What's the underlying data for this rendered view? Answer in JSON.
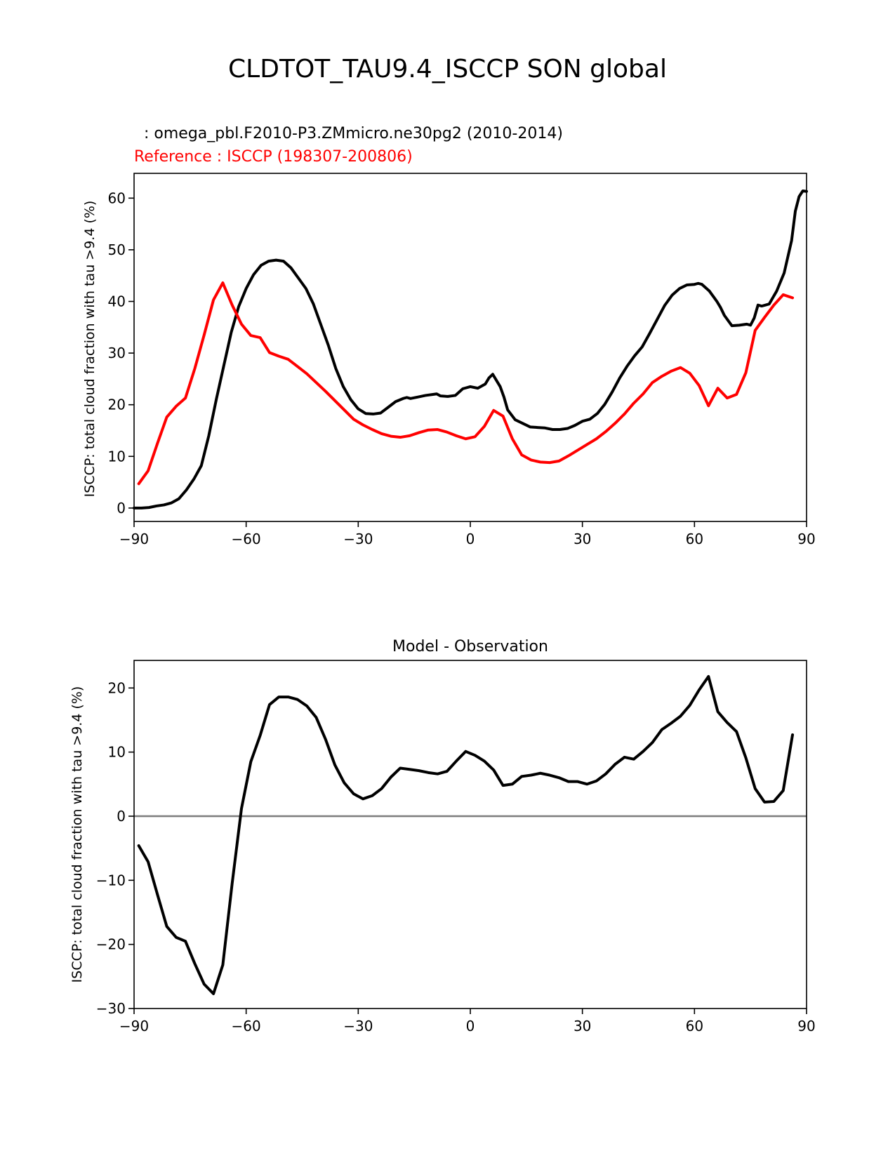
{
  "suptitle": "CLDTOT_TAU9.4_ISCCP SON global",
  "colors": {
    "model": "#000000",
    "reference": "#ff0000",
    "zero_line": "#808080"
  },
  "chart_data": [
    {
      "type": "line",
      "title_model": "  : omega_pbl.F2010-P3.ZMmicro.ne30pg2 (2010-2014)",
      "title_reference": "Reference : ISCCP (198307-200806)",
      "xlabel": "",
      "ylabel": "ISCCP: total cloud fraction with tau >9.4 (%)",
      "xlim": [
        -90,
        90
      ],
      "ylim": [
        -2.6,
        64.8
      ],
      "xticks": [
        -90,
        -60,
        -30,
        0,
        30,
        60,
        90
      ],
      "xtick_labels": [
        "−90",
        "−60",
        "−30",
        "0",
        "30",
        "60",
        "90"
      ],
      "yticks": [
        0,
        10,
        20,
        30,
        40,
        50,
        60
      ],
      "ytick_labels": [
        "0",
        "10",
        "20",
        "30",
        "40",
        "50",
        "60"
      ],
      "series": [
        {
          "name": "model",
          "color": "#000000",
          "x": [
            -90,
            -88,
            -86,
            -84,
            -82,
            -80,
            -78,
            -76,
            -74,
            -72,
            -70,
            -68,
            -66,
            -64,
            -62,
            -60,
            -58,
            -56,
            -54,
            -52,
            -50,
            -48,
            -46,
            -44,
            -42,
            -40,
            -38,
            -36,
            -34,
            -32,
            -30,
            -28,
            -26,
            -24,
            -22,
            -20,
            -18,
            -17,
            -16,
            -14,
            -12,
            -10,
            -9,
            -8,
            -6,
            -4,
            -2,
            0,
            2,
            4,
            5,
            6,
            8,
            9,
            10,
            12,
            14,
            16,
            18,
            20,
            22,
            24,
            26,
            28,
            30,
            32,
            34,
            36,
            38,
            40,
            42,
            44,
            46,
            48,
            50,
            52,
            54,
            56,
            58,
            60,
            61,
            62,
            64,
            66,
            67,
            68,
            70,
            72,
            74,
            75,
            76,
            77,
            78,
            80,
            82,
            84,
            86,
            87,
            88,
            89,
            90
          ],
          "values": [
            0,
            0,
            0.1,
            0.4,
            0.6,
            1,
            1.8,
            3.5,
            5.6,
            8.2,
            14,
            21,
            27.5,
            34,
            39,
            42.5,
            45.2,
            47,
            47.8,
            48,
            47.8,
            46.5,
            44.5,
            42.5,
            39.5,
            35.5,
            31.5,
            27,
            23.5,
            21,
            19.2,
            18.3,
            18.2,
            18.4,
            19.5,
            20.6,
            21.2,
            21.4,
            21.2,
            21.5,
            21.8,
            22,
            22.1,
            21.7,
            21.6,
            21.8,
            23.1,
            23.5,
            23.2,
            24,
            25.2,
            25.9,
            23.5,
            21.5,
            19,
            17.1,
            16.4,
            15.7,
            15.6,
            15.5,
            15.2,
            15.2,
            15.4,
            16,
            16.8,
            17.2,
            18.3,
            20.1,
            22.5,
            25.2,
            27.5,
            29.5,
            31.2,
            33.8,
            36.5,
            39.2,
            41.2,
            42.5,
            43.2,
            43.3,
            43.5,
            43.3,
            42,
            40,
            38.8,
            37.3,
            35.3,
            35.4,
            35.6,
            35.4,
            36.8,
            39.3,
            39.1,
            39.5,
            42,
            45.5,
            51.8,
            57.5,
            60.3,
            61.4,
            61.3
          ]
        },
        {
          "name": "reference",
          "color": "#ff0000",
          "x": [
            -88.75,
            -86.25,
            -83.75,
            -81.25,
            -78.75,
            -76.25,
            -73.75,
            -71.25,
            -68.75,
            -66.25,
            -63.75,
            -61.25,
            -58.75,
            -56.25,
            -53.75,
            -51.25,
            -48.75,
            -46.25,
            -43.75,
            -41.25,
            -38.75,
            -36.25,
            -33.75,
            -31.25,
            -28.75,
            -26.25,
            -23.75,
            -21.25,
            -18.75,
            -16.25,
            -13.75,
            -11.25,
            -8.75,
            -6.25,
            -3.75,
            -1.25,
            1.25,
            3.75,
            6.25,
            8.75,
            11.25,
            13.75,
            16.25,
            18.75,
            21.25,
            23.75,
            26.25,
            28.75,
            31.25,
            33.75,
            36.25,
            38.75,
            41.25,
            43.75,
            46.25,
            48.75,
            51.25,
            53.75,
            56.25,
            58.75,
            61.25,
            63.75,
            66.25,
            68.75,
            71.25,
            73.75,
            76.25,
            78.75,
            81.25,
            83.75,
            86.25
          ],
          "values": [
            4.7,
            7.2,
            12.5,
            17.6,
            19.7,
            21.3,
            27,
            33.5,
            40.3,
            43.6,
            39.3,
            35.6,
            33.4,
            33,
            30.1,
            29.4,
            28.8,
            27.4,
            26,
            24.3,
            22.6,
            20.8,
            19,
            17.2,
            16.1,
            15.2,
            14.4,
            13.9,
            13.7,
            14,
            14.6,
            15.1,
            15.2,
            14.7,
            14,
            13.4,
            13.8,
            15.8,
            18.9,
            17.8,
            13.4,
            10.3,
            9.3,
            8.9,
            8.8,
            9.1,
            10.1,
            11.2,
            12.3,
            13.4,
            14.8,
            16.4,
            18.2,
            20.3,
            22.1,
            24.3,
            25.5,
            26.5,
            27.2,
            26.1,
            23.7,
            19.8,
            23.2,
            21.3,
            22,
            26.2,
            34.4,
            36.9,
            39.3,
            41.3,
            40.7
          ]
        }
      ]
    },
    {
      "type": "line",
      "title": "Model - Observation",
      "xlabel": "",
      "ylabel": "ISCCP: total cloud fraction with tau >9.4 (%)",
      "xlim": [
        -90,
        90
      ],
      "ylim": [
        -30,
        24.3
      ],
      "xticks": [
        -90,
        -60,
        -30,
        0,
        30,
        60,
        90
      ],
      "xtick_labels": [
        "−90",
        "−60",
        "−30",
        "0",
        "30",
        "60",
        "90"
      ],
      "yticks": [
        -30,
        -20,
        -10,
        0,
        10,
        20
      ],
      "ytick_labels": [
        "−30",
        "−20",
        "−10",
        "0",
        "10",
        "20"
      ],
      "zero_line": 0,
      "series": [
        {
          "name": "difference",
          "color": "#000000",
          "x": [
            -88.75,
            -86.25,
            -83.75,
            -81.25,
            -78.75,
            -76.25,
            -73.75,
            -71.25,
            -68.75,
            -66.25,
            -63.75,
            -61.25,
            -58.75,
            -56.25,
            -53.75,
            -51.25,
            -48.75,
            -46.25,
            -43.75,
            -41.25,
            -38.75,
            -36.25,
            -33.75,
            -31.25,
            -28.75,
            -26.25,
            -23.75,
            -21.25,
            -18.75,
            -16.25,
            -13.75,
            -11.25,
            -8.75,
            -6.25,
            -3.75,
            -1.25,
            1.25,
            3.75,
            6.25,
            8.75,
            11.25,
            13.75,
            16.25,
            18.75,
            21.25,
            23.75,
            26.25,
            28.75,
            31.25,
            33.75,
            36.25,
            38.75,
            41.25,
            43.75,
            46.25,
            48.75,
            51.25,
            53.75,
            56.25,
            58.75,
            61.25,
            63.75,
            66.25,
            68.75,
            71.25,
            73.75,
            76.25,
            78.75,
            81.25,
            83.75,
            86.25
          ],
          "values": [
            -4.6,
            -7.1,
            -12.2,
            -17.2,
            -18.9,
            -19.5,
            -23,
            -26.2,
            -27.7,
            -23.2,
            -10.5,
            1.2,
            8.5,
            12.6,
            17.4,
            18.6,
            18.6,
            18.2,
            17.2,
            15.4,
            12,
            8,
            5.2,
            3.5,
            2.7,
            3.2,
            4.3,
            6.1,
            7.5,
            7.3,
            7.1,
            6.8,
            6.6,
            7,
            8.6,
            10.1,
            9.5,
            8.6,
            7.2,
            4.8,
            5,
            6.2,
            6.4,
            6.7,
            6.4,
            6,
            5.4,
            5.4,
            5,
            5.5,
            6.6,
            8.1,
            9.2,
            8.9,
            10.1,
            11.5,
            13.5,
            14.5,
            15.6,
            17.3,
            19.7,
            21.8,
            16.3,
            14.6,
            13.2,
            9.1,
            4.3,
            2.2,
            2.3,
            4,
            12.7
          ]
        }
      ]
    }
  ]
}
